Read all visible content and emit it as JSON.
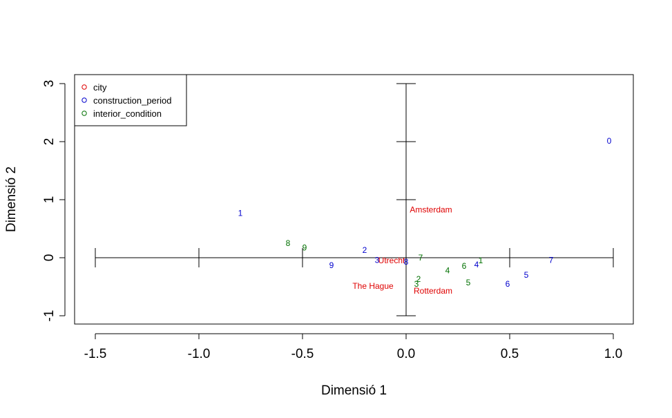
{
  "chart_data": {
    "type": "scatter",
    "xlabel": "Dimensió 1",
    "ylabel": "Dimensió 2",
    "xlim": [
      -1.6,
      1.1
    ],
    "ylim": [
      -1.15,
      3.15
    ],
    "xticks": [
      -1.5,
      -1.0,
      -0.5,
      0.0,
      0.5,
      1.0
    ],
    "xtick_labels": [
      "-1.5",
      "-1.0",
      "-0.5",
      "0.0",
      "0.5",
      "1.0"
    ],
    "yticks": [
      -1,
      0,
      1,
      2,
      3
    ],
    "ytick_labels": [
      "-1",
      "0",
      "1",
      "2",
      "3"
    ],
    "grid": false,
    "legend_position": "top-left",
    "legend": [
      {
        "name": "city",
        "color": "#DF0000"
      },
      {
        "name": "construction_period",
        "color": "#0000CD"
      },
      {
        "name": "interior_condition",
        "color": "#007000"
      }
    ],
    "series": [
      {
        "name": "city",
        "color": "#DF0000",
        "points": [
          {
            "label": "Amsterdam",
            "x": 0.12,
            "y": 0.83
          },
          {
            "label": "Utrecht",
            "x": -0.07,
            "y": -0.05
          },
          {
            "label": "The Hague",
            "x": -0.16,
            "y": -0.49
          },
          {
            "label": "Rotterdam",
            "x": 0.13,
            "y": -0.57
          }
        ]
      },
      {
        "name": "construction_period",
        "color": "#0000CD",
        "points": [
          {
            "label": "0",
            "x": 0.98,
            "y": 2.01
          },
          {
            "label": "1",
            "x": -0.8,
            "y": 0.77
          },
          {
            "label": "2",
            "x": -0.2,
            "y": 0.13
          },
          {
            "label": "3",
            "x": -0.14,
            "y": -0.04
          },
          {
            "label": "4",
            "x": 0.34,
            "y": -0.12
          },
          {
            "label": "5",
            "x": 0.58,
            "y": -0.3
          },
          {
            "label": "6",
            "x": 0.49,
            "y": -0.45
          },
          {
            "label": "7",
            "x": 0.7,
            "y": -0.04
          },
          {
            "label": "8",
            "x": 0.0,
            "y": -0.07
          },
          {
            "label": "9",
            "x": -0.36,
            "y": -0.13
          }
        ]
      },
      {
        "name": "interior_condition",
        "color": "#007000",
        "points": [
          {
            "label": "1",
            "x": 0.36,
            "y": -0.05
          },
          {
            "label": "2",
            "x": 0.06,
            "y": -0.37
          },
          {
            "label": "3",
            "x": 0.05,
            "y": -0.45
          },
          {
            "label": "4",
            "x": 0.2,
            "y": -0.22
          },
          {
            "label": "5",
            "x": 0.3,
            "y": -0.43
          },
          {
            "label": "6",
            "x": 0.28,
            "y": -0.14
          },
          {
            "label": "7",
            "x": 0.07,
            "y": 0.0
          },
          {
            "label": "8",
            "x": -0.57,
            "y": 0.25
          },
          {
            "label": "9",
            "x": -0.49,
            "y": 0.17
          }
        ]
      }
    ]
  }
}
